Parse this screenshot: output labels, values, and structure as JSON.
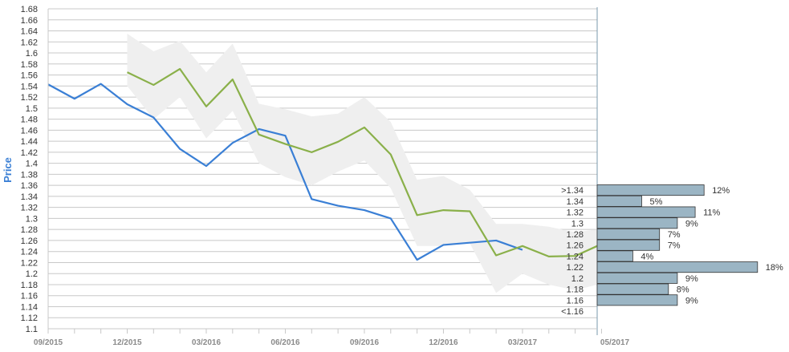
{
  "chart_data": {
    "type": "line",
    "ylabel": "Price",
    "ylim": [
      1.1,
      1.68
    ],
    "y_ticks": [
      "1.1",
      "1.12",
      "1.14",
      "1.16",
      "1.18",
      "1.2",
      "1.22",
      "1.24",
      "1.26",
      "1.28",
      "1.3",
      "1.32",
      "1.34",
      "1.36",
      "1.38",
      "1.4",
      "1.42",
      "1.44",
      "1.46",
      "1.48",
      "1.5",
      "1.52",
      "1.54",
      "1.56",
      "1.58",
      "1.6",
      "1.62",
      "1.64",
      "1.66",
      "1.68"
    ],
    "x_ticks": [
      "09/2015",
      "12/2015",
      "03/2016",
      "06/2016",
      "09/2016",
      "12/2016",
      "03/2017",
      "05/2017"
    ],
    "grid": true,
    "series": [
      {
        "role": "actual",
        "color": "#3a7fd5",
        "points": [
          [
            "09/2015",
            1.543
          ],
          [
            "10/2015",
            1.517
          ],
          [
            "11/2015",
            1.544
          ],
          [
            "12/2015",
            1.507
          ],
          [
            "01/2016",
            1.483
          ],
          [
            "02/2016",
            1.426
          ],
          [
            "03/2016",
            1.395
          ],
          [
            "04/2016",
            1.437
          ],
          [
            "05/2016",
            1.462
          ],
          [
            "06/2016",
            1.45
          ],
          [
            "07/2016",
            1.335
          ],
          [
            "08/2016",
            1.323
          ],
          [
            "09/2016",
            1.315
          ],
          [
            "10/2016",
            1.3
          ],
          [
            "11/2016",
            1.225
          ],
          [
            "12/2016",
            1.252
          ],
          [
            "01/2017",
            1.256
          ],
          [
            "02/2017",
            1.26
          ],
          [
            "03/2017",
            1.243
          ]
        ]
      },
      {
        "role": "forecast",
        "color": "#8ab04a",
        "points": [
          [
            "12/2015",
            1.565
          ],
          [
            "01/2016",
            1.542
          ],
          [
            "02/2016",
            1.571
          ],
          [
            "03/2016",
            1.503
          ],
          [
            "04/2016",
            1.552
          ],
          [
            "05/2016",
            1.452
          ],
          [
            "06/2016",
            1.435
          ],
          [
            "07/2016",
            1.42
          ],
          [
            "08/2016",
            1.439
          ],
          [
            "09/2016",
            1.465
          ],
          [
            "10/2016",
            1.416
          ],
          [
            "11/2016",
            1.306
          ],
          [
            "12/2016",
            1.315
          ],
          [
            "01/2017",
            1.313
          ],
          [
            "02/2017",
            1.233
          ],
          [
            "03/2017",
            1.25
          ],
          [
            "04/2017",
            1.231
          ],
          [
            "05/2017",
            1.232
          ],
          [
            "05/2017 end",
            1.25
          ]
        ]
      }
    ],
    "band": {
      "color": "#efefef",
      "upper": [
        1.635,
        1.603,
        1.622,
        1.565,
        1.617,
        1.508,
        1.498,
        1.485,
        1.49,
        1.52,
        1.475,
        1.37,
        1.377,
        1.352,
        1.29,
        1.29,
        1.285,
        1.275,
        1.28
      ],
      "lower": [
        1.54,
        1.48,
        1.52,
        1.445,
        1.495,
        1.4,
        1.375,
        1.36,
        1.385,
        1.405,
        1.355,
        1.25,
        1.25,
        1.255,
        1.165,
        1.2,
        1.18,
        1.17,
        1.18
      ]
    },
    "distribution": {
      "color": "#9bb5c4",
      "bins": [
        {
          "label": ">1.34",
          "value": 12,
          "value_label": "12%"
        },
        {
          "label": "1.34",
          "value": 5,
          "value_label": "5%"
        },
        {
          "label": "1.32",
          "value": 11,
          "value_label": "11%"
        },
        {
          "label": "1.3",
          "value": 9,
          "value_label": "9%"
        },
        {
          "label": "1.28",
          "value": 7,
          "value_label": "7%"
        },
        {
          "label": "1.26",
          "value": 7,
          "value_label": "7%"
        },
        {
          "label": "1.24",
          "value": 4,
          "value_label": "4%"
        },
        {
          "label": "1.22",
          "value": 18,
          "value_label": "18%"
        },
        {
          "label": "1.2",
          "value": 9,
          "value_label": "9%"
        },
        {
          "label": "1.18",
          "value": 8,
          "value_label": "8%"
        },
        {
          "label": "1.16",
          "value": 9,
          "value_label": "9%"
        },
        {
          "label": "<1.16",
          "value": null,
          "value_label": ""
        }
      ]
    }
  }
}
